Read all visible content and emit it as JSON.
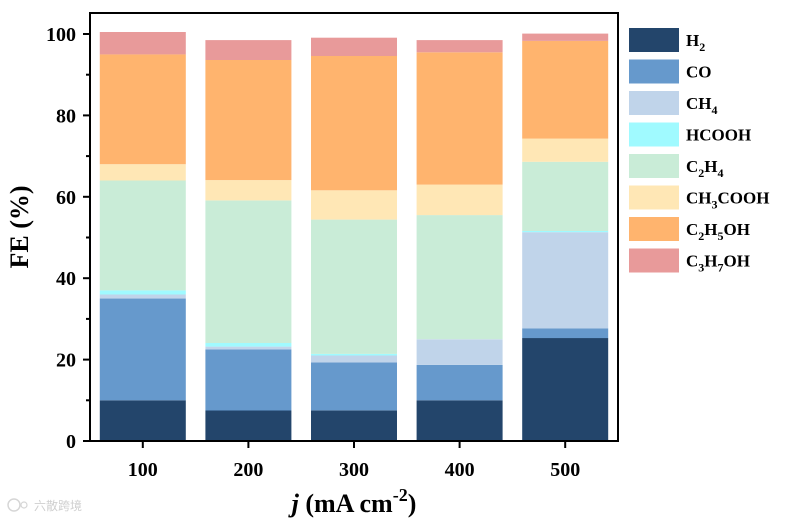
{
  "chart_data": {
    "type": "bar",
    "stacked": true,
    "categories": [
      "100",
      "200",
      "300",
      "400",
      "500"
    ],
    "series": [
      {
        "name": "H2",
        "label_parts": [
          [
            "H",
            ""
          ],
          [
            "2",
            "sub"
          ]
        ],
        "color": "#23456b",
        "values": [
          10.0,
          7.5,
          7.5,
          10.0,
          25.3
        ]
      },
      {
        "name": "CO",
        "label_parts": [
          [
            "CO",
            ""
          ]
        ],
        "color": "#6699cc",
        "values": [
          25.0,
          15.0,
          11.8,
          8.7,
          2.4
        ]
      },
      {
        "name": "CH4",
        "label_parts": [
          [
            "CH",
            ""
          ],
          [
            "4",
            "sub"
          ]
        ],
        "color": "#c0d4ea",
        "values": [
          1.0,
          0.7,
          1.7,
          6.3,
          23.6
        ]
      },
      {
        "name": "HCOOH",
        "label_parts": [
          [
            "HCOOH",
            ""
          ]
        ],
        "color": "#a0faff",
        "values": [
          1.0,
          0.9,
          0.4,
          0.0,
          0.3
        ]
      },
      {
        "name": "C2H4",
        "label_parts": [
          [
            "C",
            ""
          ],
          [
            "2",
            "sub"
          ],
          [
            "H",
            ""
          ],
          [
            "4",
            "sub"
          ]
        ],
        "color": "#c9ecd7",
        "values": [
          27.0,
          35.0,
          33.0,
          30.5,
          17.0
        ]
      },
      {
        "name": "CH3COOH",
        "label_parts": [
          [
            "CH",
            ""
          ],
          [
            "3",
            "sub"
          ],
          [
            "COOH",
            ""
          ]
        ],
        "color": "#ffe7b5",
        "values": [
          4.0,
          5.0,
          7.2,
          7.5,
          5.7
        ]
      },
      {
        "name": "C2H5OH",
        "label_parts": [
          [
            "C",
            ""
          ],
          [
            "2",
            "sub"
          ],
          [
            "H",
            ""
          ],
          [
            "5",
            "sub"
          ],
          [
            "OH",
            ""
          ]
        ],
        "color": "#ffb46e",
        "values": [
          27.0,
          29.5,
          33.0,
          32.5,
          24.0
        ]
      },
      {
        "name": "C3H7OH",
        "label_parts": [
          [
            "C",
            ""
          ],
          [
            "3",
            "sub"
          ],
          [
            "H",
            ""
          ],
          [
            "7",
            "sub"
          ],
          [
            "OH",
            ""
          ]
        ],
        "color": "#e89a9a",
        "values": [
          5.5,
          4.9,
          4.5,
          3.0,
          1.8
        ]
      }
    ],
    "yticks": [
      "0",
      "20",
      "40",
      "60",
      "80",
      "100"
    ],
    "ylim": [
      0,
      105
    ],
    "ylabel": "FE (%)",
    "xlabel_parts": [
      [
        "j",
        "italic"
      ],
      [
        " (mA cm",
        ""
      ],
      [
        "-2",
        "sup"
      ],
      [
        ")",
        ""
      ]
    ],
    "legend_position": "right"
  },
  "watermark": "六散跨境"
}
